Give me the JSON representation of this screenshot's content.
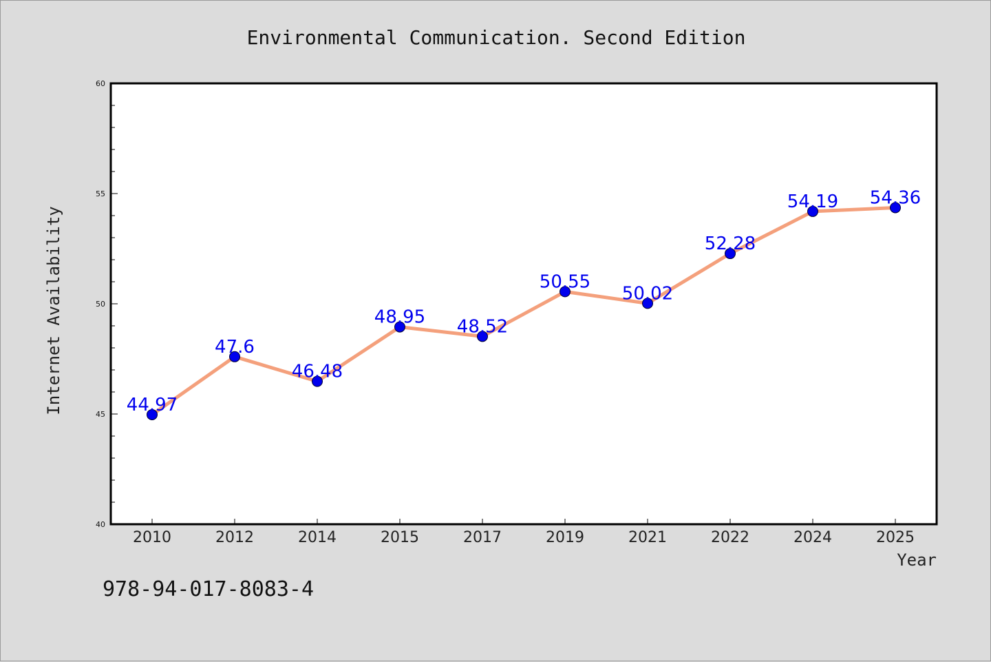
{
  "chart_data": {
    "type": "line",
    "title": "Environmental Communication. Second Edition",
    "xlabel": "Year",
    "ylabel": "Internet Availability",
    "categories": [
      "2010",
      "2012",
      "2014",
      "2015",
      "2017",
      "2019",
      "2021",
      "2022",
      "2024",
      "2025"
    ],
    "values": [
      44.97,
      47.6,
      46.48,
      48.95,
      48.52,
      50.55,
      50.02,
      52.28,
      54.19,
      54.36
    ],
    "data_labels": [
      "44.97",
      "47.6",
      "46.48",
      "48.95",
      "48.52",
      "50.55",
      "50.02",
      "52.28",
      "54.19",
      "54.36"
    ],
    "ylim": [
      40,
      60
    ],
    "y_ticks": [
      "40",
      "45",
      "50",
      "55",
      "60"
    ],
    "grid": false,
    "line_color": "#f4a07c",
    "marker_color": "#0000ee",
    "label_color": "#0000ee"
  },
  "footer": {
    "isbn": "978-94-017-8083-4"
  }
}
